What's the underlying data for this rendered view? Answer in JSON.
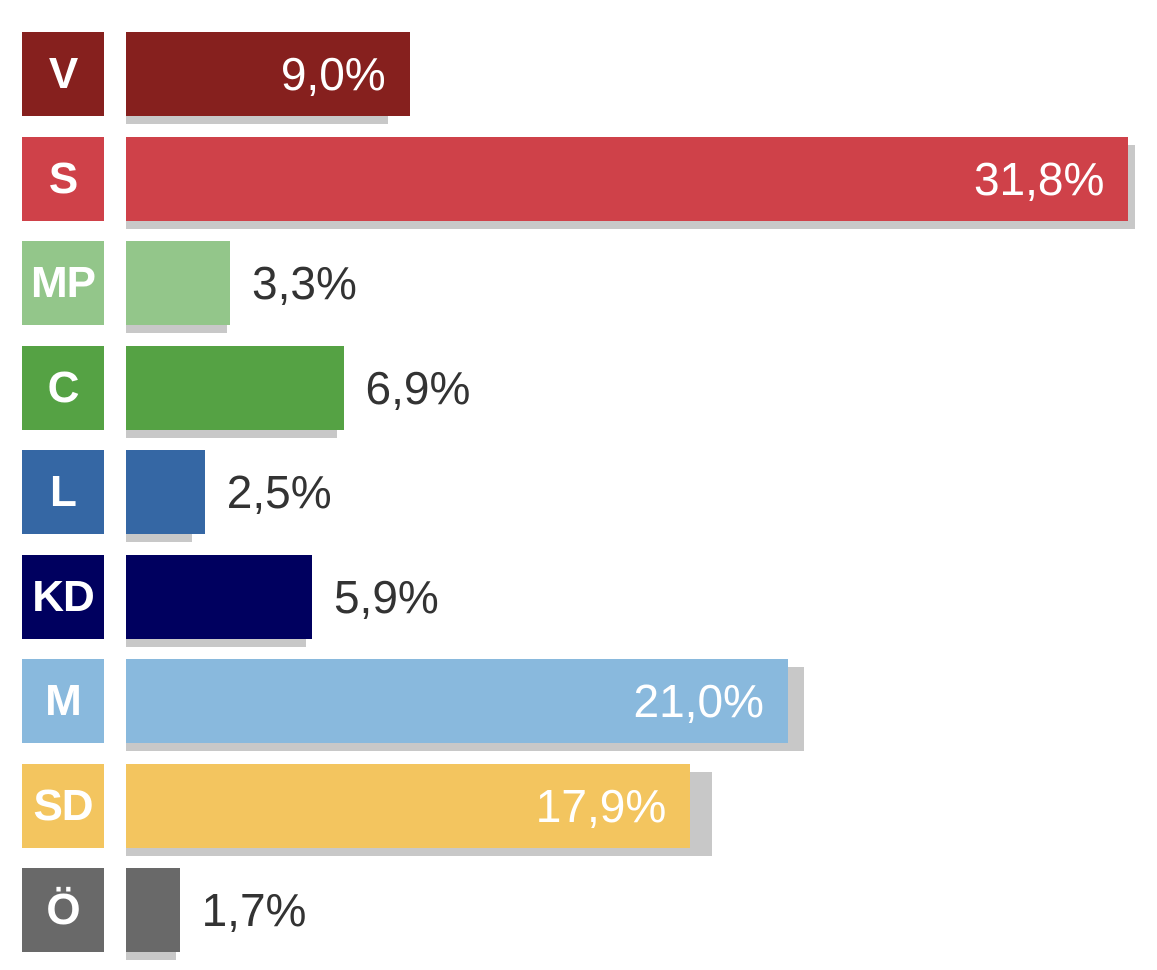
{
  "chart_data": {
    "type": "bar",
    "orientation": "horizontal",
    "categories": [
      "V",
      "S",
      "MP",
      "C",
      "L",
      "KD",
      "M",
      "SD",
      "Ö"
    ],
    "values": [
      9.0,
      31.8,
      3.3,
      6.9,
      2.5,
      5.9,
      21.0,
      17.9,
      1.7
    ],
    "value_labels": [
      "9,0%",
      "31,8%",
      "3,3%",
      "6,9%",
      "2,5%",
      "5,9%",
      "21,0%",
      "17,9%",
      "1,7%"
    ],
    "shadow_values": [
      8.3,
      32.0,
      3.2,
      6.7,
      2.1,
      5.7,
      21.5,
      18.6,
      1.6
    ],
    "colors": [
      "#86201e",
      "#cf4149",
      "#93c68a",
      "#55a244",
      "#3567a4",
      "#00005f",
      "#89b9dd",
      "#f3c55f",
      "#696969"
    ],
    "label_inside": [
      true,
      true,
      false,
      false,
      false,
      false,
      true,
      true,
      false
    ],
    "xlim": [
      0,
      32.2
    ],
    "title": "",
    "xlabel": "",
    "ylabel": ""
  }
}
